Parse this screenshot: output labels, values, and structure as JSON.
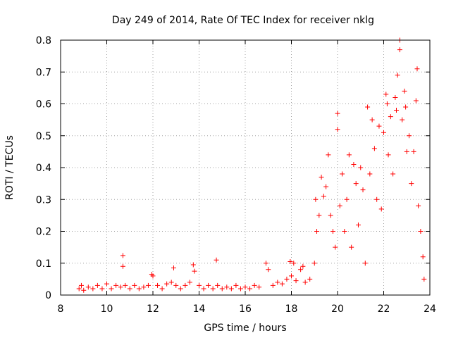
{
  "chart_data": {
    "type": "scatter",
    "title": "Day 249 of 2014, Rate Of TEC Index for receiver nklg",
    "xlabel": "GPS time / hours",
    "ylabel": "ROTI / TECUs",
    "xlim": [
      8,
      24
    ],
    "ylim": [
      0,
      0.8
    ],
    "x_ticks": [
      "8",
      "10",
      "12",
      "14",
      "16",
      "18",
      "20",
      "22",
      "24"
    ],
    "y_ticks": [
      "0",
      "0.1",
      "0.2",
      "0.3",
      "0.4",
      "0.5",
      "0.6",
      "0.7",
      "0.8"
    ],
    "grid": true,
    "marker": "+",
    "color": "#ff0000",
    "series": [
      {
        "name": "ROTI",
        "points": [
          [
            8.8,
            0.02
          ],
          [
            8.9,
            0.03
          ],
          [
            9.0,
            0.015
          ],
          [
            9.2,
            0.025
          ],
          [
            9.4,
            0.02
          ],
          [
            9.6,
            0.03
          ],
          [
            9.8,
            0.02
          ],
          [
            10.0,
            0.035
          ],
          [
            10.2,
            0.02
          ],
          [
            10.4,
            0.03
          ],
          [
            10.6,
            0.025
          ],
          [
            10.7,
            0.124
          ],
          [
            10.7,
            0.09
          ],
          [
            10.8,
            0.03
          ],
          [
            11.0,
            0.02
          ],
          [
            11.2,
            0.03
          ],
          [
            11.4,
            0.02
          ],
          [
            11.6,
            0.025
          ],
          [
            11.8,
            0.03
          ],
          [
            11.95,
            0.065
          ],
          [
            12.0,
            0.06
          ],
          [
            12.2,
            0.03
          ],
          [
            12.4,
            0.02
          ],
          [
            12.6,
            0.035
          ],
          [
            12.8,
            0.04
          ],
          [
            12.9,
            0.085
          ],
          [
            13.0,
            0.03
          ],
          [
            13.2,
            0.02
          ],
          [
            13.4,
            0.03
          ],
          [
            13.6,
            0.04
          ],
          [
            13.75,
            0.095
          ],
          [
            13.8,
            0.075
          ],
          [
            14.0,
            0.03
          ],
          [
            14.2,
            0.02
          ],
          [
            14.4,
            0.03
          ],
          [
            14.6,
            0.02
          ],
          [
            14.75,
            0.11
          ],
          [
            14.8,
            0.03
          ],
          [
            15.0,
            0.02
          ],
          [
            15.2,
            0.025
          ],
          [
            15.4,
            0.02
          ],
          [
            15.6,
            0.03
          ],
          [
            15.8,
            0.02
          ],
          [
            16.0,
            0.025
          ],
          [
            16.2,
            0.02
          ],
          [
            16.4,
            0.03
          ],
          [
            16.6,
            0.025
          ],
          [
            16.9,
            0.1
          ],
          [
            17.0,
            0.08
          ],
          [
            17.2,
            0.03
          ],
          [
            17.4,
            0.04
          ],
          [
            17.6,
            0.035
          ],
          [
            17.8,
            0.05
          ],
          [
            17.95,
            0.105
          ],
          [
            18.0,
            0.06
          ],
          [
            18.1,
            0.1
          ],
          [
            18.2,
            0.045
          ],
          [
            18.4,
            0.08
          ],
          [
            18.5,
            0.09
          ],
          [
            18.6,
            0.04
          ],
          [
            18.8,
            0.05
          ],
          [
            19.0,
            0.1
          ],
          [
            19.05,
            0.3
          ],
          [
            19.1,
            0.2
          ],
          [
            19.2,
            0.25
          ],
          [
            19.3,
            0.37
          ],
          [
            19.4,
            0.31
          ],
          [
            19.5,
            0.34
          ],
          [
            19.6,
            0.44
          ],
          [
            19.7,
            0.25
          ],
          [
            19.8,
            0.2
          ],
          [
            19.9,
            0.15
          ],
          [
            20.0,
            0.57
          ],
          [
            20.0,
            0.52
          ],
          [
            20.1,
            0.28
          ],
          [
            20.2,
            0.38
          ],
          [
            20.3,
            0.2
          ],
          [
            20.4,
            0.3
          ],
          [
            20.5,
            0.44
          ],
          [
            20.6,
            0.15
          ],
          [
            20.7,
            0.41
          ],
          [
            20.8,
            0.35
          ],
          [
            20.9,
            0.22
          ],
          [
            21.0,
            0.4
          ],
          [
            21.1,
            0.33
          ],
          [
            21.2,
            0.1
          ],
          [
            21.3,
            0.59
          ],
          [
            21.4,
            0.38
          ],
          [
            21.5,
            0.55
          ],
          [
            21.6,
            0.46
          ],
          [
            21.7,
            0.3
          ],
          [
            21.8,
            0.53
          ],
          [
            21.9,
            0.27
          ],
          [
            22.0,
            0.51
          ],
          [
            22.1,
            0.63
          ],
          [
            22.15,
            0.6
          ],
          [
            22.2,
            0.44
          ],
          [
            22.3,
            0.56
          ],
          [
            22.4,
            0.38
          ],
          [
            22.5,
            0.62
          ],
          [
            22.55,
            0.58
          ],
          [
            22.6,
            0.69
          ],
          [
            22.7,
            0.8
          ],
          [
            22.7,
            0.77
          ],
          [
            22.8,
            0.55
          ],
          [
            22.9,
            0.64
          ],
          [
            22.95,
            0.59
          ],
          [
            23.0,
            0.45
          ],
          [
            23.1,
            0.5
          ],
          [
            23.2,
            0.35
          ],
          [
            23.3,
            0.45
          ],
          [
            23.4,
            0.61
          ],
          [
            23.45,
            0.71
          ],
          [
            23.5,
            0.28
          ],
          [
            23.6,
            0.2
          ],
          [
            23.7,
            0.12
          ],
          [
            23.75,
            0.05
          ]
        ]
      }
    ]
  }
}
